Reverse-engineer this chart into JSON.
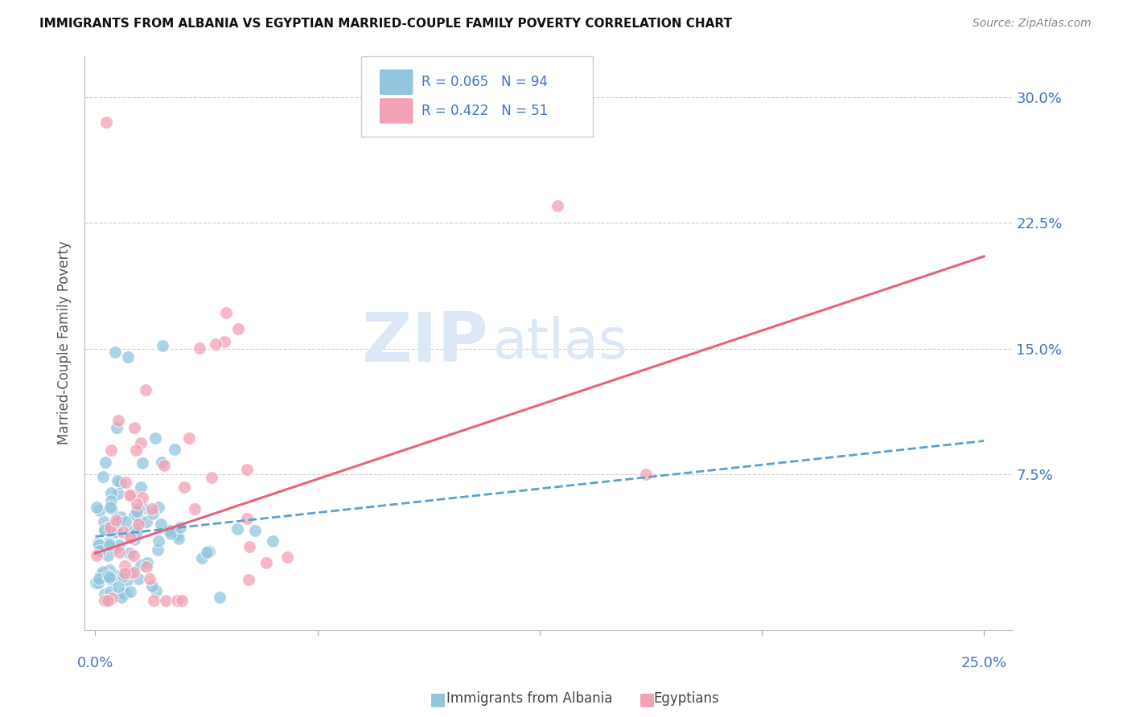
{
  "title": "IMMIGRANTS FROM ALBANIA VS EGYPTIAN MARRIED-COUPLE FAMILY POVERTY CORRELATION CHART",
  "source": "Source: ZipAtlas.com",
  "ylabel": "Married-Couple Family Poverty",
  "xlim": [
    0.0,
    0.25
  ],
  "ylim": [
    0.0,
    0.32
  ],
  "albania_color": "#92c5de",
  "egypt_color": "#f4a0b5",
  "albania_line_color": "#5aa0d0",
  "egypt_line_color": "#e8627a",
  "watermark_zip": "ZIP",
  "watermark_atlas": "atlas",
  "albania_line_x0": 0.0,
  "albania_line_x1": 0.25,
  "albania_line_y0": 0.038,
  "albania_line_y1": 0.095,
  "egypt_line_x0": 0.0,
  "egypt_line_x1": 0.25,
  "egypt_line_y0": 0.028,
  "egypt_line_y1": 0.205,
  "yticks": [
    0.075,
    0.15,
    0.225,
    0.3
  ],
  "ytick_labels": [
    "7.5%",
    "15.0%",
    "22.5%",
    "30.0%"
  ],
  "xtick_positions": [
    0.0,
    0.0625,
    0.125,
    0.1875,
    0.25
  ],
  "legend_r1": "R = 0.065",
  "legend_n1": "N = 94",
  "legend_r2": "R = 0.422",
  "legend_n2": "N = 51"
}
